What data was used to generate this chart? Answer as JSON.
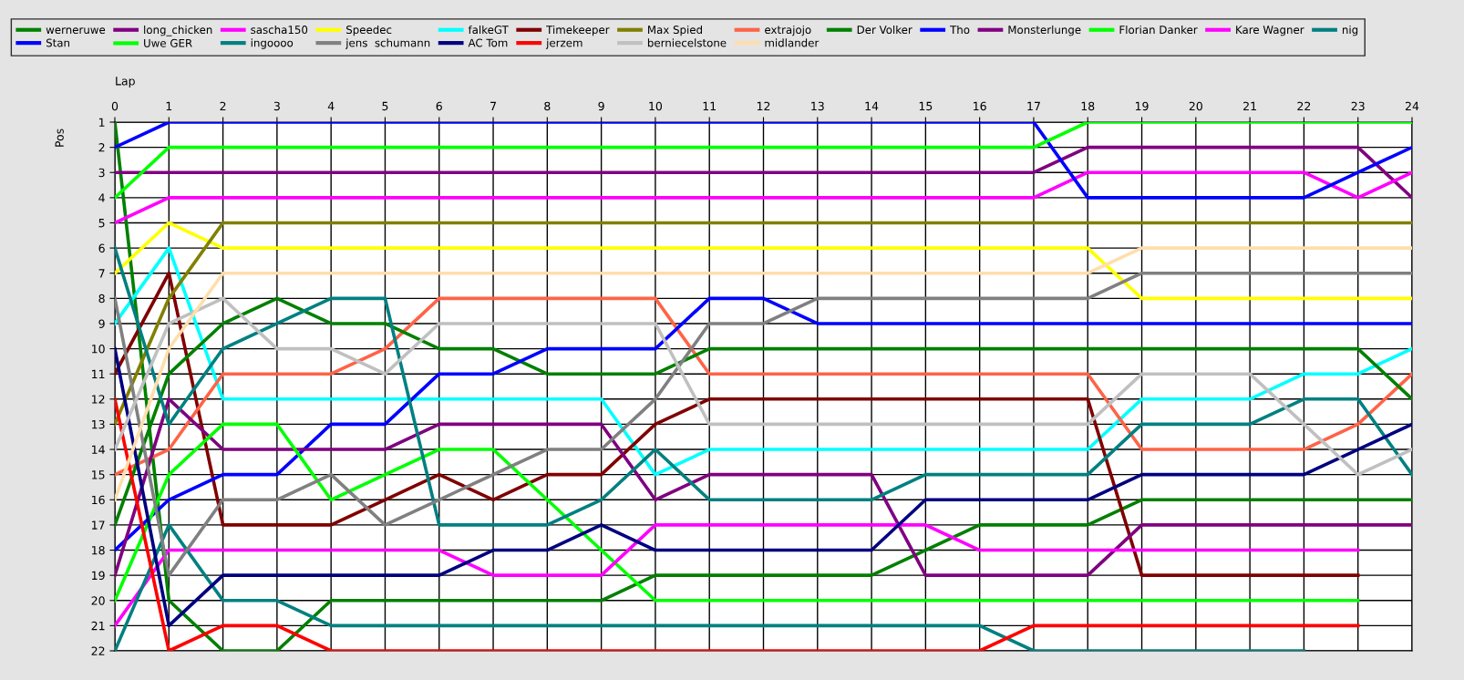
{
  "chart_data": {
    "type": "line",
    "xlabel": "Lap",
    "ylabel": "Pos",
    "x": [
      0,
      1,
      2,
      3,
      4,
      5,
      6,
      7,
      8,
      9,
      10,
      11,
      12,
      13,
      14,
      15,
      16,
      17,
      18,
      19,
      20,
      21,
      22,
      23,
      24
    ],
    "xlim": [
      0,
      24
    ],
    "xticks": [
      0,
      1,
      2,
      3,
      4,
      5,
      6,
      7,
      8,
      9,
      10,
      11,
      12,
      13,
      14,
      15,
      16,
      17,
      18,
      19,
      20,
      21,
      22,
      23,
      24
    ],
    "ylim": [
      22,
      1
    ],
    "yticks": [
      1,
      2,
      3,
      4,
      5,
      6,
      7,
      8,
      9,
      10,
      11,
      12,
      13,
      14,
      15,
      16,
      17,
      18,
      19,
      20,
      21,
      22
    ],
    "grid": true,
    "legend": "top",
    "marker": "none",
    "line_style": "solid",
    "series": [
      {
        "name": "werneruwe",
        "color": "#008000",
        "values": [
          1,
          20,
          22,
          22,
          20,
          20,
          20,
          20,
          20,
          20,
          19,
          19,
          19,
          19,
          19,
          18,
          17,
          17,
          17,
          16,
          16,
          16,
          16,
          16,
          16
        ]
      },
      {
        "name": "long_chicken",
        "color": "#800080",
        "values": [
          3,
          3,
          3,
          3,
          3,
          3,
          3,
          3,
          3,
          3,
          3,
          3,
          3,
          3,
          3,
          3,
          3,
          3,
          2,
          2,
          2,
          2,
          2,
          2,
          4
        ]
      },
      {
        "name": "sascha150",
        "color": "#ff00ff",
        "values": [
          5,
          4,
          4,
          4,
          4,
          4,
          4,
          4,
          4,
          4,
          4,
          4,
          4,
          4,
          4,
          4,
          4,
          4,
          3,
          3,
          3,
          3,
          3,
          4,
          3
        ]
      },
      {
        "name": "Speedec",
        "color": "#ffff00",
        "values": [
          7,
          5,
          6,
          6,
          6,
          6,
          6,
          6,
          6,
          6,
          6,
          6,
          6,
          6,
          6,
          6,
          6,
          6,
          6,
          8,
          8,
          8,
          8,
          8,
          8
        ]
      },
      {
        "name": "falkeGT",
        "color": "#00ffff",
        "values": [
          9,
          6,
          12,
          12,
          12,
          12,
          12,
          12,
          12,
          12,
          15,
          14,
          14,
          14,
          14,
          14,
          14,
          14,
          14,
          12,
          12,
          12,
          11,
          11,
          10
        ]
      },
      {
        "name": "Timekeeper",
        "color": "#800000",
        "values": [
          11,
          7,
          17,
          17,
          17,
          16,
          15,
          16,
          15,
          15,
          13,
          12,
          12,
          12,
          12,
          12,
          12,
          12,
          12,
          19,
          19,
          19,
          19,
          19,
          null
        ]
      },
      {
        "name": "Max Spied",
        "color": "#808000",
        "values": [
          13,
          8,
          5,
          5,
          5,
          5,
          5,
          5,
          5,
          5,
          5,
          5,
          5,
          5,
          5,
          5,
          5,
          5,
          5,
          5,
          5,
          5,
          5,
          5,
          5
        ]
      },
      {
        "name": "extrajojo",
        "color": "#ff6347",
        "values": [
          15,
          14,
          11,
          11,
          11,
          10,
          8,
          8,
          8,
          8,
          8,
          11,
          11,
          11,
          11,
          11,
          11,
          11,
          11,
          14,
          14,
          14,
          14,
          13,
          11
        ]
      },
      {
        "name": "Der Volker",
        "color": "#008000",
        "values": [
          17,
          11,
          9,
          8,
          9,
          9,
          10,
          10,
          11,
          11,
          11,
          10,
          10,
          10,
          10,
          10,
          10,
          10,
          10,
          10,
          10,
          10,
          10,
          10,
          12
        ]
      },
      {
        "name": "Tho",
        "color": "#0000ff",
        "values": [
          18,
          16,
          15,
          15,
          13,
          13,
          11,
          11,
          10,
          10,
          10,
          8,
          8,
          9,
          9,
          9,
          9,
          9,
          9,
          9,
          9,
          9,
          9,
          9,
          9
        ]
      },
      {
        "name": "Monsterlunge",
        "color": "#800080",
        "values": [
          19,
          12,
          14,
          14,
          14,
          14,
          13,
          13,
          13,
          13,
          16,
          15,
          15,
          15,
          15,
          19,
          19,
          19,
          19,
          17,
          17,
          17,
          17,
          17,
          17
        ]
      },
      {
        "name": "Florian Danker",
        "color": "#00ff00",
        "values": [
          20,
          15,
          13,
          13,
          16,
          15,
          14,
          14,
          16,
          18,
          20,
          20,
          20,
          20,
          20,
          20,
          20,
          20,
          20,
          20,
          20,
          20,
          20,
          20,
          null
        ]
      },
      {
        "name": "Kare Wagner",
        "color": "#ff00ff",
        "values": [
          21,
          18,
          18,
          18,
          18,
          18,
          18,
          19,
          19,
          19,
          17,
          17,
          17,
          17,
          17,
          17,
          18,
          18,
          18,
          18,
          18,
          18,
          18,
          18,
          null
        ]
      },
      {
        "name": "nig",
        "color": "#008080",
        "values": [
          22,
          17,
          20,
          20,
          21,
          21,
          21,
          21,
          21,
          21,
          21,
          21,
          21,
          21,
          21,
          21,
          21,
          22,
          22,
          22,
          22,
          22,
          22,
          null,
          null
        ]
      },
      {
        "name": "Stan",
        "color": "#0000ff",
        "values": [
          2,
          1,
          1,
          1,
          1,
          1,
          1,
          1,
          1,
          1,
          1,
          1,
          1,
          1,
          1,
          1,
          1,
          1,
          4,
          4,
          4,
          4,
          4,
          3,
          2
        ]
      },
      {
        "name": "Uwe GER",
        "color": "#00ff00",
        "values": [
          4,
          2,
          2,
          2,
          2,
          2,
          2,
          2,
          2,
          2,
          2,
          2,
          2,
          2,
          2,
          2,
          2,
          2,
          1,
          1,
          1,
          1,
          1,
          1,
          1
        ]
      },
      {
        "name": "ingoooo",
        "color": "#008080",
        "values": [
          6,
          13,
          10,
          9,
          8,
          8,
          17,
          17,
          17,
          16,
          14,
          16,
          16,
          16,
          16,
          15,
          15,
          15,
          15,
          13,
          13,
          13,
          12,
          12,
          15
        ]
      },
      {
        "name": "jens  schumann",
        "color": "#808080",
        "values": [
          8,
          19,
          16,
          16,
          15,
          17,
          16,
          15,
          14,
          14,
          12,
          9,
          9,
          8,
          8,
          8,
          8,
          8,
          8,
          7,
          7,
          7,
          7,
          7,
          7
        ]
      },
      {
        "name": "AC Tom",
        "color": "#000080",
        "values": [
          10,
          21,
          19,
          19,
          19,
          19,
          19,
          18,
          18,
          17,
          18,
          18,
          18,
          18,
          18,
          16,
          16,
          16,
          16,
          15,
          15,
          15,
          15,
          14,
          13
        ]
      },
      {
        "name": "jerzem",
        "color": "#ff0000",
        "values": [
          12,
          22,
          21,
          21,
          22,
          22,
          22,
          22,
          22,
          22,
          22,
          22,
          22,
          22,
          22,
          22,
          22,
          21,
          21,
          21,
          21,
          21,
          21,
          21,
          null
        ]
      },
      {
        "name": "berniecelstone",
        "color": "#c0c0c0",
        "values": [
          14,
          9,
          8,
          10,
          10,
          11,
          9,
          9,
          9,
          9,
          9,
          13,
          13,
          13,
          13,
          13,
          13,
          13,
          13,
          11,
          11,
          11,
          13,
          15,
          14
        ]
      },
      {
        "name": "midlander",
        "color": "#ffdead",
        "values": [
          16,
          10,
          7,
          7,
          7,
          7,
          7,
          7,
          7,
          7,
          7,
          7,
          7,
          7,
          7,
          7,
          7,
          7,
          7,
          6,
          6,
          6,
          6,
          6,
          6
        ]
      }
    ]
  }
}
